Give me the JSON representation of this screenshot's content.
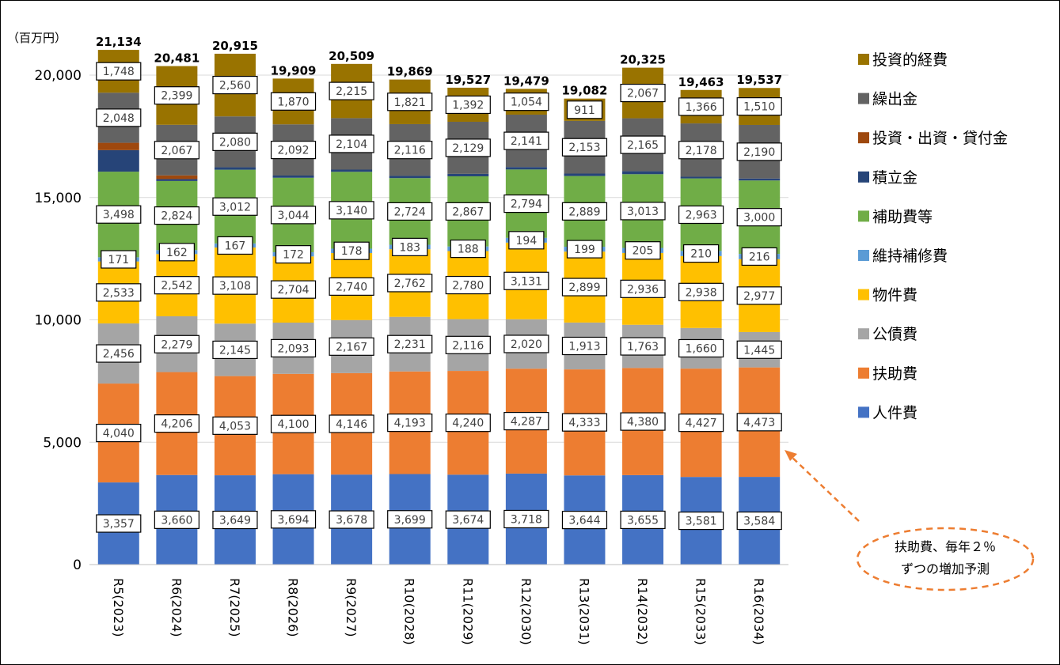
{
  "chart_data": {
    "type": "bar",
    "stacked": true,
    "unit_label": "（百万円）",
    "categories": [
      "R5(2023)",
      "R6(2024)",
      "R7(2025)",
      "R8(2026)",
      "R9(2027)",
      "R10(2028)",
      "R11(2029)",
      "R12(2030)",
      "R13(2031)",
      "R14(2032)",
      "R15(2033)",
      "R16(2034)"
    ],
    "ylim": [
      0,
      20000
    ],
    "yticks": [
      0,
      5000,
      10000,
      15000,
      20000
    ],
    "ytick_labels": [
      "0",
      "5,000",
      "10,000",
      "15,000",
      "20,000"
    ],
    "grid": true,
    "legend_position": "right",
    "series": [
      {
        "name": "人件費",
        "color": "#4472C4",
        "values": [
          3357,
          3660,
          3649,
          3694,
          3678,
          3699,
          3674,
          3718,
          3644,
          3655,
          3581,
          3584
        ],
        "labels": [
          "3,357",
          "3,660",
          "3,649",
          "3,694",
          "3,678",
          "3,699",
          "3,674",
          "3,718",
          "3,644",
          "3,655",
          "3,581",
          "3,584"
        ]
      },
      {
        "name": "扶助費",
        "color": "#ED7D31",
        "values": [
          4040,
          4206,
          4053,
          4100,
          4146,
          4193,
          4240,
          4287,
          4333,
          4380,
          4427,
          4473
        ],
        "labels": [
          "4,040",
          "4,206",
          "4,053",
          "4,100",
          "4,146",
          "4,193",
          "4,240",
          "4,287",
          "4,333",
          "4,380",
          "4,427",
          "4,473"
        ]
      },
      {
        "name": "公債費",
        "color": "#A5A5A5",
        "values": [
          2456,
          2279,
          2145,
          2093,
          2167,
          2231,
          2116,
          2020,
          1913,
          1763,
          1660,
          1445
        ],
        "labels": [
          "2,456",
          "2,279",
          "2,145",
          "2,093",
          "2,167",
          "2,231",
          "2,116",
          "2,020",
          "1,913",
          "1,763",
          "1,660",
          "1,445"
        ]
      },
      {
        "name": "物件費",
        "color": "#FFC000",
        "values": [
          2533,
          2542,
          3108,
          2704,
          2740,
          2762,
          2780,
          3131,
          2899,
          2936,
          2938,
          2977
        ],
        "labels": [
          "2,533",
          "2,542",
          "3,108",
          "2,704",
          "2,740",
          "2,762",
          "2,780",
          "3,131",
          "2,899",
          "2,936",
          "2,938",
          "2,977"
        ]
      },
      {
        "name": "維持補修費",
        "color": "#5B9BD5",
        "values": [
          171,
          162,
          167,
          172,
          178,
          183,
          188,
          194,
          199,
          205,
          210,
          216
        ],
        "labels": [
          "171",
          "162",
          "167",
          "172",
          "178",
          "183",
          "188",
          "194",
          "199",
          "205",
          "210",
          "216"
        ]
      },
      {
        "name": "補助費等",
        "color": "#70AD47",
        "values": [
          3498,
          2824,
          3012,
          3044,
          3140,
          2724,
          2867,
          2794,
          2889,
          3013,
          2963,
          3000
        ],
        "labels": [
          "3,498",
          "2,824",
          "3,012",
          "3,044",
          "3,140",
          "2,724",
          "2,867",
          "2,794",
          "2,889",
          "3,013",
          "2,963",
          "3,000"
        ]
      },
      {
        "name": "積立金",
        "color": "#264478",
        "values": [
          880,
          80,
          100,
          90,
          90,
          90,
          100,
          100,
          100,
          120,
          70,
          80
        ],
        "labels": null
      },
      {
        "name": "投資・出資・貸付金",
        "color": "#9E480E",
        "values": [
          300,
          150,
          0,
          0,
          0,
          0,
          0,
          0,
          0,
          0,
          0,
          0
        ],
        "labels": null
      },
      {
        "name": "繰出金",
        "color": "#636363",
        "values": [
          2048,
          2067,
          2080,
          2092,
          2104,
          2116,
          2129,
          2141,
          2153,
          2165,
          2178,
          2190
        ],
        "labels": [
          "2,048",
          "2,067",
          "2,080",
          "2,092",
          "2,104",
          "2,116",
          "2,129",
          "2,141",
          "2,153",
          "2,165",
          "2,178",
          "2,190"
        ]
      },
      {
        "name": "投資的経費",
        "color": "#997300",
        "values": [
          1748,
          2399,
          2560,
          1870,
          2215,
          1821,
          1392,
          1054,
          911,
          2067,
          1366,
          1510
        ],
        "labels": [
          "1,748",
          "2,399",
          "2,560",
          "1,870",
          "2,215",
          "1,821",
          "1,392",
          "1,054",
          "911",
          "2,067",
          "1,366",
          "1,510"
        ]
      }
    ],
    "totals": [
      21134,
      20481,
      20915,
      19909,
      20509,
      19869,
      19527,
      19479,
      19082,
      20325,
      19463,
      19537
    ],
    "total_labels": [
      "21,134",
      "20,481",
      "20,915",
      "19,909",
      "20,509",
      "19,869",
      "19,527",
      "19,479",
      "19,082",
      "20,325",
      "19,463",
      "19,537"
    ],
    "legend_order": [
      "投資的経費",
      "繰出金",
      "投資・出資・貸付金",
      "積立金",
      "補助費等",
      "維持補修費",
      "物件費",
      "公債費",
      "扶助費",
      "人件費"
    ],
    "annotation": {
      "lines": [
        "扶助費、毎年２％",
        "ずつの増加予測"
      ],
      "color": "#ED7D31"
    }
  }
}
